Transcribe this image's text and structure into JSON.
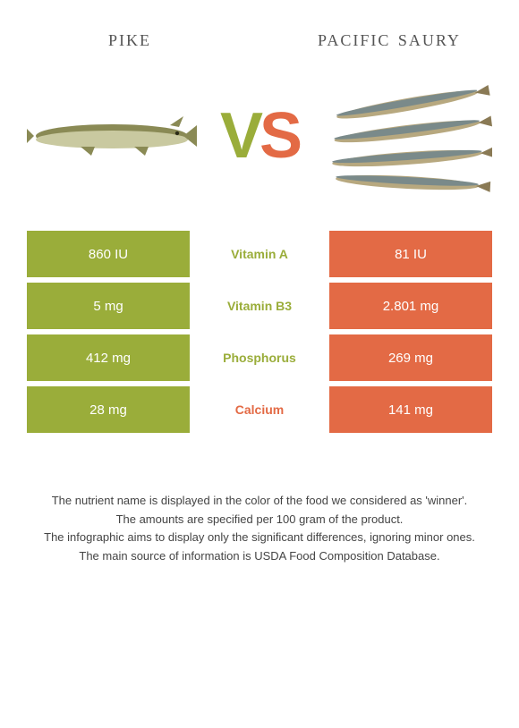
{
  "header": {
    "left_name": "pike",
    "right_name": "pacific saury"
  },
  "vs": {
    "v": "V",
    "s": "S"
  },
  "colors": {
    "left": "#9aad3a",
    "right": "#e36a45",
    "bg": "#ffffff"
  },
  "nutrients": [
    {
      "name": "Vitamin A",
      "left": "860 IU",
      "right": "81 IU",
      "winner": "left"
    },
    {
      "name": "Vitamin B3",
      "left": "5 mg",
      "right": "2.801 mg",
      "winner": "left"
    },
    {
      "name": "Phosphorus",
      "left": "412 mg",
      "right": "269 mg",
      "winner": "left"
    },
    {
      "name": "Calcium",
      "left": "28 mg",
      "right": "141 mg",
      "winner": "right"
    }
  ],
  "footnotes": [
    "The nutrient name is displayed in the color of the food we considered as 'winner'.",
    "The amounts are specified per 100 gram of the product.",
    "The infographic aims to display only the significant differences, ignoring minor ones.",
    "The main source of information is USDA Food Composition Database."
  ]
}
